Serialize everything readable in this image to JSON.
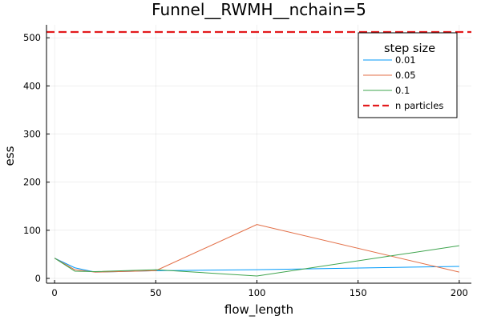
{
  "chart_data": {
    "type": "line",
    "title": "Funnel__RWMH__nchain=5",
    "xlabel": "flow_length",
    "ylabel": "ess",
    "xlim": [
      -4,
      206
    ],
    "ylim": [
      -10,
      527
    ],
    "xticks": [
      0,
      50,
      100,
      150,
      200
    ],
    "yticks": [
      0,
      100,
      200,
      300,
      400,
      500
    ],
    "grid": true,
    "legend": {
      "title": "step size",
      "position": "top-right"
    },
    "x": [
      0,
      10,
      20,
      50,
      100,
      200
    ],
    "series": [
      {
        "name": "0.01",
        "color": "#009AFA",
        "values": [
          42,
          22,
          13,
          16,
          18,
          25
        ]
      },
      {
        "name": "0.05",
        "color": "#E36F47",
        "values": [
          42,
          18,
          13,
          16,
          112,
          13
        ]
      },
      {
        "name": "0.1",
        "color": "#3EA44E",
        "values": [
          42,
          15,
          14,
          18,
          5,
          68
        ]
      }
    ],
    "hlines": [
      {
        "name": "n particles",
        "color": "#E31A1C",
        "value": 512,
        "style": "dashed"
      }
    ]
  }
}
